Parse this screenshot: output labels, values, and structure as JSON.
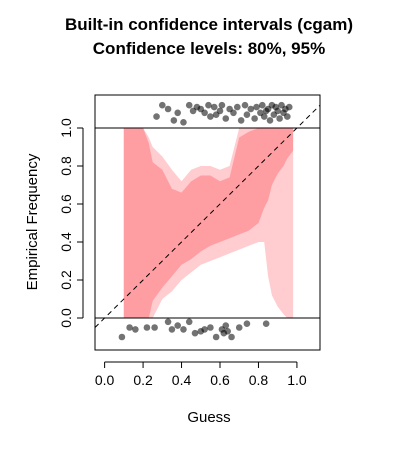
{
  "chart_data": {
    "type": "scatter",
    "title": "Built-in confidence intervals (cgam)",
    "subtitle": "Confidence levels: 80%, 95%",
    "xlabel": "Guess",
    "ylabel": "Empirical Frequency",
    "xlim": [
      -0.05,
      1.12
    ],
    "ylim": [
      0.0,
      1.0
    ],
    "x_ticks": [
      "0.0",
      "0.2",
      "0.4",
      "0.6",
      "0.8",
      "1.0"
    ],
    "y_ticks": [
      "0.0",
      "0.2",
      "0.4",
      "0.6",
      "0.8",
      "1.0"
    ],
    "grid": false,
    "colors": {
      "band_95": "#ffcccf",
      "band_80": "#ff9ea2",
      "points": "#000000",
      "reference_line": "#000000"
    },
    "reference_line": {
      "style": "dashed",
      "from": [
        -0.05,
        -0.05
      ],
      "to": [
        1.12,
        1.12
      ]
    },
    "band_x": [
      0.1,
      0.15,
      0.2,
      0.23,
      0.25,
      0.3,
      0.35,
      0.4,
      0.45,
      0.5,
      0.55,
      0.6,
      0.65,
      0.7,
      0.75,
      0.8,
      0.83,
      0.85,
      0.87,
      0.9,
      0.93,
      0.95,
      0.98
    ],
    "band_80_lower": [
      0.0,
      0.0,
      0.0,
      0.0,
      0.09,
      0.16,
      0.22,
      0.28,
      0.31,
      0.35,
      0.38,
      0.4,
      0.42,
      0.44,
      0.46,
      0.5,
      0.58,
      0.62,
      0.7,
      0.76,
      0.8,
      0.84,
      0.88
    ],
    "band_80_upper": [
      1.0,
      1.0,
      1.0,
      0.92,
      0.82,
      0.78,
      0.68,
      0.66,
      0.72,
      0.75,
      0.75,
      0.72,
      0.74,
      0.95,
      0.98,
      1.0,
      1.0,
      1.0,
      1.0,
      1.0,
      1.0,
      1.0,
      1.0
    ],
    "band_95_lower": [
      0.0,
      0.0,
      0.0,
      0.0,
      0.0,
      0.1,
      0.14,
      0.2,
      0.24,
      0.28,
      0.3,
      0.32,
      0.34,
      0.36,
      0.38,
      0.4,
      0.4,
      0.22,
      0.12,
      0.06,
      0.02,
      0.0,
      0.0
    ],
    "band_95_upper": [
      1.0,
      1.0,
      1.0,
      0.95,
      0.9,
      0.85,
      0.78,
      0.72,
      0.78,
      0.8,
      0.8,
      0.78,
      0.8,
      1.0,
      1.0,
      1.0,
      1.0,
      1.0,
      1.0,
      1.0,
      1.0,
      1.0,
      1.0
    ],
    "points_outcome_1": {
      "x": [
        0.27,
        0.3,
        0.33,
        0.36,
        0.38,
        0.41,
        0.44,
        0.46,
        0.48,
        0.5,
        0.52,
        0.54,
        0.55,
        0.57,
        0.58,
        0.6,
        0.61,
        0.63,
        0.65,
        0.67,
        0.69,
        0.71,
        0.73,
        0.74,
        0.76,
        0.78,
        0.79,
        0.81,
        0.82,
        0.83,
        0.84,
        0.85,
        0.86,
        0.87,
        0.88,
        0.89,
        0.9,
        0.91,
        0.92,
        0.93,
        0.94,
        0.95,
        0.96
      ],
      "jitter": [
        1.06,
        1.12,
        1.1,
        1.04,
        1.08,
        1.03,
        1.12,
        1.09,
        1.11,
        1.1,
        1.08,
        1.12,
        1.06,
        1.11,
        1.07,
        1.09,
        1.12,
        1.05,
        1.1,
        1.08,
        1.11,
        1.04,
        1.12,
        1.07,
        1.1,
        1.05,
        1.11,
        1.08,
        1.12,
        1.06,
        1.09,
        1.1,
        1.04,
        1.12,
        1.07,
        1.11,
        1.09,
        1.05,
        1.12,
        1.08,
        1.1,
        1.06,
        1.11
      ]
    },
    "points_outcome_0": {
      "x": [
        0.09,
        0.13,
        0.16,
        0.22,
        0.26,
        0.33,
        0.35,
        0.38,
        0.41,
        0.44,
        0.47,
        0.5,
        0.52,
        0.55,
        0.58,
        0.61,
        0.62,
        0.63,
        0.64,
        0.66,
        0.7,
        0.74,
        0.84
      ],
      "jitter": [
        -0.1,
        -0.05,
        -0.06,
        -0.05,
        -0.05,
        -0.02,
        -0.06,
        -0.04,
        -0.06,
        -0.02,
        -0.08,
        -0.07,
        -0.06,
        -0.05,
        -0.1,
        -0.06,
        -0.08,
        -0.04,
        -0.07,
        -0.1,
        -0.05,
        -0.03,
        -0.03
      ]
    }
  }
}
